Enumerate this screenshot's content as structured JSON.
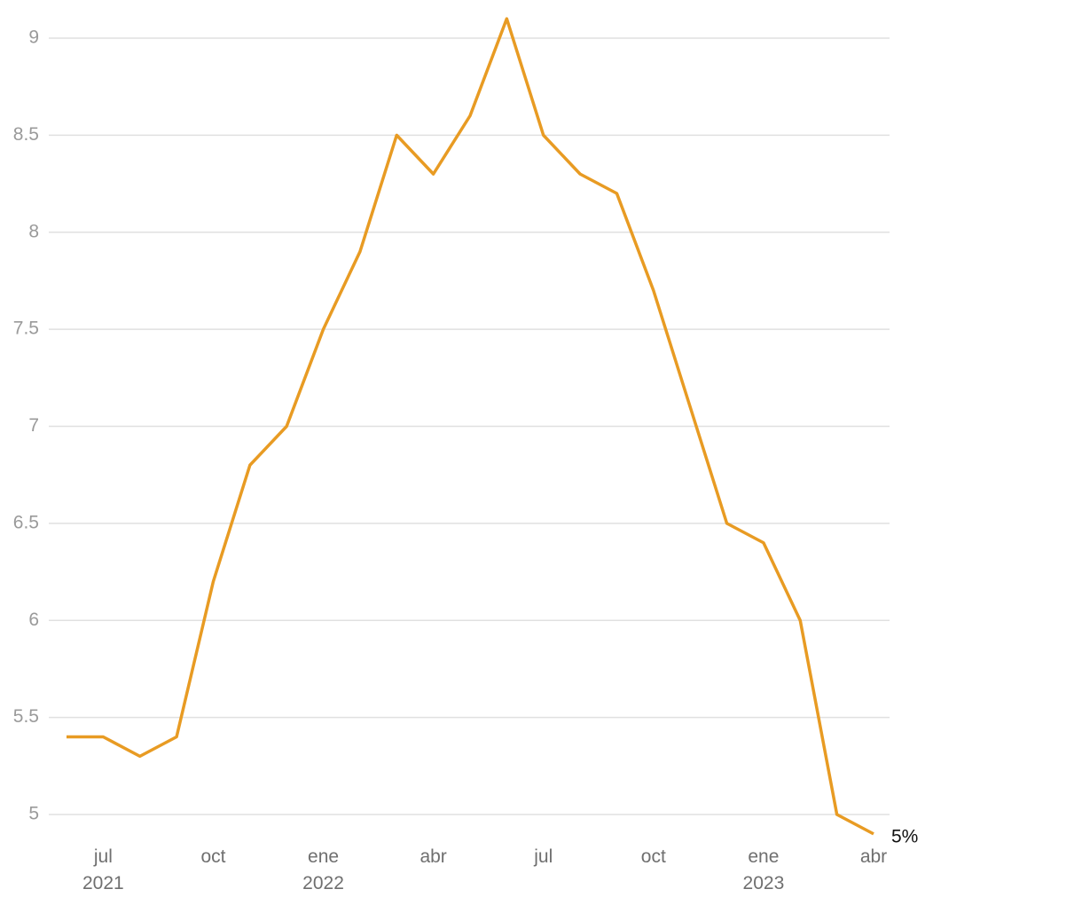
{
  "chart_data": {
    "type": "line",
    "categories": [
      null,
      "jul 2021",
      null,
      null,
      "oct",
      null,
      null,
      "ene 2022",
      null,
      null,
      "abr",
      null,
      null,
      "jul",
      null,
      null,
      "oct",
      null,
      null,
      "ene 2023",
      null,
      null,
      "abr"
    ],
    "series": [
      {
        "color": "#e89b23",
        "values": [
          5.4,
          5.4,
          5.3,
          5.4,
          6.2,
          6.8,
          7.0,
          7.5,
          7.9,
          8.5,
          8.3,
          8.6,
          9.1,
          8.5,
          8.3,
          8.2,
          7.7,
          7.1,
          6.5,
          6.4,
          6.0,
          5.0,
          4.9
        ],
        "value_labels": [
          null,
          null,
          null,
          null,
          null,
          null,
          null,
          null,
          null,
          null,
          null,
          null,
          null,
          null,
          null,
          null,
          null,
          null,
          null,
          null,
          null,
          null,
          "5%"
        ]
      }
    ],
    "ylim": [
      5,
      9
    ],
    "yticks": [
      5,
      5.5,
      6,
      6.5,
      7,
      7.5,
      8,
      8.5,
      9
    ],
    "grid": true
  }
}
